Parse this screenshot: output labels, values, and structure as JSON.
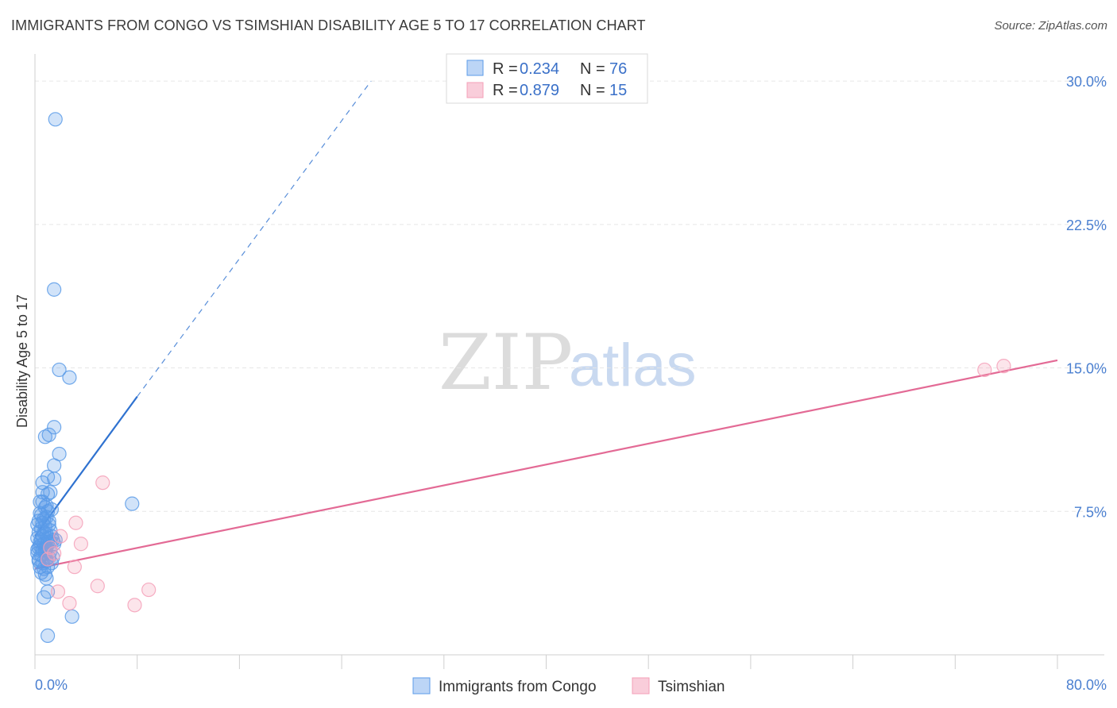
{
  "title": "IMMIGRANTS FROM CONGO VS TSIMSHIAN DISABILITY AGE 5 TO 17 CORRELATION CHART",
  "source": "Source: ZipAtlas.com",
  "watermark": {
    "zip": "ZIP",
    "atlas": "atlas"
  },
  "colors": {
    "blue": "#5b9be8",
    "blue_line": "#2f72d0",
    "pink": "#f4a0b8",
    "pink_line": "#e36a95"
  },
  "legend": {
    "rows": [
      {
        "r_label": "R = ",
        "r_value": "0.234",
        "n_label": "N = ",
        "n_value": "76",
        "color": "blue"
      },
      {
        "r_label": "R = ",
        "r_value": "0.879",
        "n_label": "N = ",
        "n_value": "15",
        "color": "pink"
      }
    ]
  },
  "bottom_legend": {
    "series1": "Immigrants from Congo",
    "series2": "Tsimshian"
  },
  "chart_data": {
    "type": "scatter",
    "title": "IMMIGRANTS FROM CONGO VS TSIMSHIAN DISABILITY AGE 5 TO 17 CORRELATION CHART",
    "xlabel": "",
    "ylabel": "Disability Age 5 to 17",
    "xlim": [
      0,
      80
    ],
    "ylim": [
      0,
      31
    ],
    "x_tick_labels": [
      "0.0%",
      "80.0%"
    ],
    "y_ticks": [
      7.5,
      15.0,
      22.5,
      30.0
    ],
    "y_tick_labels": [
      "7.5%",
      "15.0%",
      "22.5%",
      "30.0%"
    ],
    "grid": true,
    "legend_position": "top-center",
    "series": [
      {
        "name": "Immigrants from Congo",
        "color": "blue",
        "r": 0.234,
        "n": 76,
        "trend": {
          "x1": 0.0,
          "y1": 6.2,
          "x2": 8.0,
          "y2": 13.5,
          "dashed_to_x": 26.3,
          "dashed_to_y": 30.0
        },
        "points": [
          [
            1.6,
            28.0
          ],
          [
            1.5,
            19.1
          ],
          [
            1.9,
            14.9
          ],
          [
            2.7,
            14.5
          ],
          [
            1.5,
            11.9
          ],
          [
            0.8,
            11.4
          ],
          [
            1.1,
            11.5
          ],
          [
            1.9,
            10.5
          ],
          [
            1.5,
            9.9
          ],
          [
            0.6,
            9.0
          ],
          [
            1.0,
            9.3
          ],
          [
            1.5,
            9.2
          ],
          [
            0.6,
            8.5
          ],
          [
            1.0,
            8.4
          ],
          [
            1.2,
            8.5
          ],
          [
            0.4,
            8.0
          ],
          [
            0.8,
            7.7
          ],
          [
            1.0,
            7.5
          ],
          [
            1.3,
            7.6
          ],
          [
            0.5,
            7.3
          ],
          [
            0.9,
            7.2
          ],
          [
            0.3,
            7.0
          ],
          [
            0.7,
            7.1
          ],
          [
            1.1,
            7.0
          ],
          [
            0.2,
            6.8
          ],
          [
            0.5,
            6.6
          ],
          [
            0.8,
            6.7
          ],
          [
            1.2,
            6.5
          ],
          [
            0.3,
            6.4
          ],
          [
            0.6,
            6.2
          ],
          [
            0.9,
            6.3
          ],
          [
            1.3,
            6.2
          ],
          [
            1.4,
            6.0
          ],
          [
            0.2,
            6.1
          ],
          [
            0.4,
            5.9
          ],
          [
            0.7,
            5.8
          ],
          [
            1.0,
            5.9
          ],
          [
            1.5,
            5.8
          ],
          [
            0.3,
            5.6
          ],
          [
            0.6,
            5.5
          ],
          [
            0.9,
            5.6
          ],
          [
            1.2,
            5.4
          ],
          [
            0.2,
            5.3
          ],
          [
            0.5,
            5.2
          ],
          [
            0.8,
            5.3
          ],
          [
            1.1,
            5.1
          ],
          [
            1.4,
            5.1
          ],
          [
            0.3,
            4.9
          ],
          [
            0.6,
            4.8
          ],
          [
            0.9,
            4.9
          ],
          [
            0.4,
            4.6
          ],
          [
            0.7,
            4.5
          ],
          [
            1.0,
            4.6
          ],
          [
            0.5,
            4.3
          ],
          [
            0.8,
            4.2
          ],
          [
            0.9,
            4.0
          ],
          [
            0.7,
            3.0
          ],
          [
            1.0,
            3.3
          ],
          [
            2.9,
            2.0
          ],
          [
            1.0,
            1.0
          ],
          [
            7.6,
            7.9
          ],
          [
            0.4,
            5.7
          ],
          [
            0.6,
            6.9
          ],
          [
            1.1,
            6.8
          ],
          [
            0.3,
            5.0
          ],
          [
            0.8,
            5.5
          ],
          [
            1.2,
            5.9
          ],
          [
            0.5,
            6.0
          ],
          [
            0.7,
            6.4
          ],
          [
            1.3,
            4.8
          ],
          [
            0.4,
            7.4
          ],
          [
            0.6,
            8.0
          ],
          [
            0.9,
            7.8
          ],
          [
            0.2,
            5.5
          ],
          [
            1.0,
            6.1
          ],
          [
            1.6,
            6.0
          ]
        ]
      },
      {
        "name": "Tsimshian",
        "color": "pink",
        "r": 0.879,
        "n": 15,
        "trend": {
          "x1": 0.0,
          "y1": 4.5,
          "x2": 80.0,
          "y2": 15.4
        },
        "points": [
          [
            5.3,
            9.0
          ],
          [
            3.2,
            6.9
          ],
          [
            3.6,
            5.8
          ],
          [
            3.1,
            4.6
          ],
          [
            4.9,
            3.6
          ],
          [
            8.9,
            3.4
          ],
          [
            1.8,
            3.3
          ],
          [
            2.7,
            2.7
          ],
          [
            7.8,
            2.6
          ],
          [
            1.0,
            5.0
          ],
          [
            1.5,
            5.3
          ],
          [
            74.3,
            14.9
          ],
          [
            75.8,
            15.1
          ],
          [
            1.2,
            5.6
          ],
          [
            2.0,
            6.2
          ]
        ]
      }
    ]
  }
}
